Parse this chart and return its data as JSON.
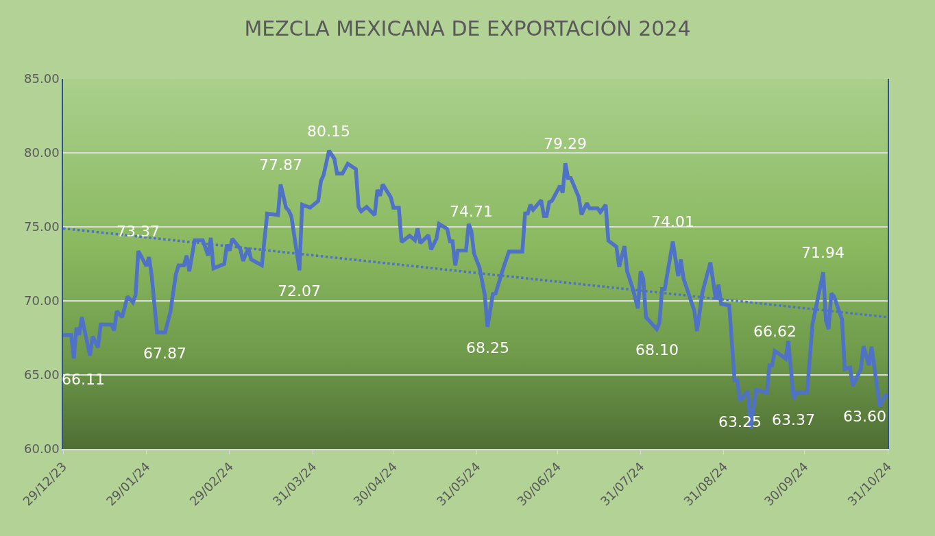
{
  "chart_data": {
    "type": "line",
    "title": "MEZCLA MEXICANA DE EXPORTACIÓN 2024",
    "x": [
      "2023-12-29",
      "2024-01-01",
      "2024-01-02",
      "2024-01-03",
      "2024-01-04",
      "2024-01-05",
      "2024-01-08",
      "2024-01-09",
      "2024-01-11",
      "2024-01-12",
      "2024-01-16",
      "2024-01-17",
      "2024-01-18",
      "2024-01-20",
      "2024-01-22",
      "2024-01-24",
      "2024-01-25",
      "2024-01-26",
      "2024-01-29",
      "2024-01-30",
      "2024-01-31",
      "2024-02-02",
      "2024-02-05",
      "2024-02-07",
      "2024-02-09",
      "2024-02-10",
      "2024-02-12",
      "2024-02-13",
      "2024-02-14",
      "2024-02-16",
      "2024-02-19",
      "2024-02-21",
      "2024-02-22",
      "2024-02-23",
      "2024-02-27",
      "2024-02-28",
      "2024-02-29",
      "2024-03-01",
      "2024-03-04",
      "2024-03-05",
      "2024-03-07",
      "2024-03-08",
      "2024-03-12",
      "2024-03-14",
      "2024-03-18",
      "2024-03-19",
      "2024-03-21",
      "2024-03-22",
      "2024-03-23",
      "2024-03-26",
      "2024-03-27",
      "2024-03-30",
      "2024-04-02",
      "2024-04-03",
      "2024-04-04",
      "2024-04-06",
      "2024-04-08",
      "2024-04-09",
      "2024-04-11",
      "2024-04-13",
      "2024-04-16",
      "2024-04-17",
      "2024-04-18",
      "2024-04-20",
      "2024-04-23",
      "2024-04-24",
      "2024-04-25",
      "2024-04-26",
      "2024-04-29",
      "2024-04-30",
      "2024-05-02",
      "2024-05-03",
      "2024-05-06",
      "2024-05-08",
      "2024-05-09",
      "2024-05-10",
      "2024-05-13",
      "2024-05-14",
      "2024-05-16",
      "2024-05-17",
      "2024-05-20",
      "2024-05-21",
      "2024-05-22",
      "2024-05-23",
      "2024-05-24",
      "2024-05-27",
      "2024-05-28",
      "2024-05-29",
      "2024-05-30",
      "2024-06-01",
      "2024-06-03",
      "2024-06-04",
      "2024-06-06",
      "2024-06-07",
      "2024-06-10",
      "2024-06-12",
      "2024-06-17",
      "2024-06-18",
      "2024-06-19",
      "2024-06-20",
      "2024-06-21",
      "2024-06-24",
      "2024-06-25",
      "2024-06-26",
      "2024-06-27",
      "2024-06-28",
      "2024-07-01",
      "2024-07-02",
      "2024-07-03",
      "2024-07-04",
      "2024-07-05",
      "2024-07-08",
      "2024-07-09",
      "2024-07-11",
      "2024-07-12",
      "2024-07-15",
      "2024-07-16",
      "2024-07-18",
      "2024-07-19",
      "2024-07-22",
      "2024-07-23",
      "2024-07-25",
      "2024-07-26",
      "2024-07-28",
      "2024-07-30",
      "2024-07-31",
      "2024-08-01",
      "2024-08-02",
      "2024-08-06",
      "2024-08-07",
      "2024-08-08",
      "2024-08-09",
      "2024-08-12",
      "2024-08-14",
      "2024-08-15",
      "2024-08-16",
      "2024-08-20",
      "2024-08-21",
      "2024-08-23",
      "2024-08-26",
      "2024-08-28",
      "2024-08-29",
      "2024-08-30",
      "2024-09-02",
      "2024-09-04",
      "2024-09-05",
      "2024-09-06",
      "2024-09-09",
      "2024-09-10",
      "2024-09-12",
      "2024-09-16",
      "2024-09-17",
      "2024-09-18",
      "2024-09-19",
      "2024-09-23",
      "2024-09-24",
      "2024-09-26",
      "2024-09-27",
      "2024-10-01",
      "2024-10-03",
      "2024-10-07",
      "2024-10-08",
      "2024-10-09",
      "2024-10-10",
      "2024-10-11",
      "2024-10-14",
      "2024-10-15",
      "2024-10-17",
      "2024-10-18",
      "2024-10-21",
      "2024-10-22",
      "2024-10-24",
      "2024-10-25",
      "2024-10-28",
      "2024-10-30",
      "2024-10-31"
    ],
    "series": [
      {
        "color": "#4f72c6",
        "values": [
          67.69,
          67.7,
          66.11,
          68.2,
          67.7,
          68.9,
          66.3,
          67.6,
          66.85,
          68.4,
          68.4,
          68.0,
          69.3,
          68.9,
          70.3,
          69.9,
          70.4,
          73.37,
          72.36,
          72.96,
          71.7,
          67.87,
          67.87,
          69.3,
          71.8,
          72.4,
          72.4,
          73.06,
          72.0,
          74.1,
          74.1,
          73.06,
          74.26,
          72.2,
          72.5,
          73.8,
          73.4,
          74.2,
          73.5,
          72.7,
          73.56,
          72.8,
          72.4,
          75.9,
          75.8,
          77.87,
          76.3,
          76.1,
          75.7,
          72.07,
          76.5,
          76.3,
          76.76,
          78.1,
          78.5,
          80.15,
          79.6,
          78.6,
          78.6,
          79.26,
          78.9,
          76.35,
          76.06,
          76.35,
          75.8,
          77.5,
          77.1,
          77.87,
          77.0,
          76.3,
          76.3,
          73.98,
          74.4,
          74.1,
          74.9,
          73.9,
          74.44,
          73.47,
          74.2,
          75.2,
          74.86,
          74.03,
          74.03,
          72.4,
          73.4,
          73.4,
          75.2,
          74.71,
          73.2,
          72.27,
          70.4,
          68.25,
          70.46,
          70.5,
          72.27,
          73.33,
          73.33,
          75.9,
          75.9,
          76.5,
          76.16,
          76.8,
          75.74,
          75.74,
          76.67,
          76.76,
          77.78,
          77.3,
          79.29,
          78.3,
          78.3,
          77.0,
          75.83,
          76.6,
          76.25,
          76.25,
          76.0,
          76.48,
          74.07,
          73.66,
          72.3,
          73.7,
          72.0,
          70.88,
          69.5,
          72.0,
          71.5,
          68.9,
          68.1,
          68.5,
          70.8,
          70.8,
          74.01,
          71.67,
          72.8,
          71.5,
          69.35,
          67.96,
          70.56,
          72.6,
          70.1,
          71.1,
          69.8,
          69.7,
          64.63,
          64.63,
          63.25,
          63.9,
          61.4,
          64.0,
          63.8,
          65.65,
          65.65,
          66.62,
          66.1,
          67.3,
          63.37,
          63.8,
          63.8,
          68.43,
          71.94,
          68.66,
          68.1,
          70.5,
          70.3,
          68.75,
          65.4,
          65.5,
          64.26,
          65.4,
          66.94,
          65.65,
          66.9,
          62.9,
          63.6,
          63.6
        ]
      },
      {
        "type": "line",
        "x": [
          "2023-12-29",
          "2024-10-31"
        ],
        "values": [
          74.9,
          68.9
        ],
        "color": "#4f72c6",
        "line_style": "dotted"
      }
    ],
    "xlim": [
      "2023-12-29",
      "2024-10-31"
    ],
    "xticks": [
      {
        "value": "2023-12-29",
        "label": "29/12/23"
      },
      {
        "value": "2024-01-29",
        "label": "29/01/24"
      },
      {
        "value": "2024-02-29",
        "label": "29/02/24"
      },
      {
        "value": "2024-03-31",
        "label": "31/03/24"
      },
      {
        "value": "2024-04-30",
        "label": "30/04/24"
      },
      {
        "value": "2024-05-31",
        "label": "31/05/24"
      },
      {
        "value": "2024-06-30",
        "label": "30/06/24"
      },
      {
        "value": "2024-07-31",
        "label": "31/07/24"
      },
      {
        "value": "2024-08-31",
        "label": "31/08/24"
      },
      {
        "value": "2024-09-30",
        "label": "30/09/24"
      },
      {
        "value": "2024-10-31",
        "label": "31/10/24"
      }
    ],
    "ylim": [
      60,
      85
    ],
    "yticks": [
      {
        "value": 60,
        "label": "60.00"
      },
      {
        "value": 65,
        "label": "65.00"
      },
      {
        "value": 70,
        "label": "70.00"
      },
      {
        "value": 75,
        "label": "75.00"
      },
      {
        "value": 80,
        "label": "80.00"
      },
      {
        "value": 85,
        "label": "85.00"
      }
    ],
    "grid": "y",
    "annotations": [
      {
        "text": "66.11",
        "x": "2024-01-02",
        "y": 66.11
      },
      {
        "text": "73.37",
        "x": "2024-01-26",
        "y": 73.37
      },
      {
        "text": "67.87",
        "x": "2024-02-05",
        "y": 67.87
      },
      {
        "text": "77.87",
        "x": "2024-03-19",
        "y": 77.87
      },
      {
        "text": "72.07",
        "x": "2024-03-26",
        "y": 72.07
      },
      {
        "text": "80.15",
        "x": "2024-04-06",
        "y": 80.15
      },
      {
        "text": "74.71",
        "x": "2024-05-29",
        "y": 74.71
      },
      {
        "text": "68.25",
        "x": "2024-06-04",
        "y": 68.25
      },
      {
        "text": "79.29",
        "x": "2024-07-03",
        "y": 79.29
      },
      {
        "text": "68.10",
        "x": "2024-08-06",
        "y": 68.1
      },
      {
        "text": "74.01",
        "x": "2024-08-12",
        "y": 74.01
      },
      {
        "text": "63.25",
        "x": "2024-09-06",
        "y": 63.25
      },
      {
        "text": "66.62",
        "x": "2024-09-19",
        "y": 66.62
      },
      {
        "text": "63.37",
        "x": "2024-09-26",
        "y": 63.37
      },
      {
        "text": "71.94",
        "x": "2024-10-07",
        "y": 71.94
      },
      {
        "text": "63.60",
        "x": "2024-10-31",
        "y": 63.6
      }
    ]
  }
}
